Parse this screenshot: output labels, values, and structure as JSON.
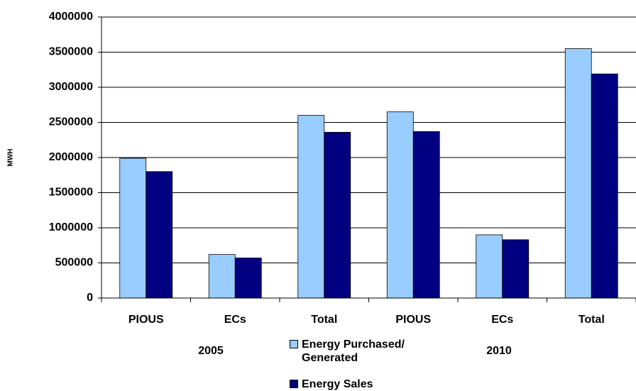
{
  "chart_data": {
    "type": "bar",
    "y_label": "MWH",
    "categories": [
      "PIOUS",
      "ECs",
      "Total",
      "PIOUS",
      "ECs",
      "Total"
    ],
    "group_labels": [
      "2005",
      "2010"
    ],
    "series": [
      {
        "name": "Energy Purchased/ Generated",
        "color": "#99ccff",
        "values": [
          1990000,
          620000,
          2600000,
          2650000,
          900000,
          3550000
        ]
      },
      {
        "name": "Energy Sales",
        "color": "#000080",
        "values": [
          1800000,
          570000,
          2360000,
          2370000,
          830000,
          3190000
        ]
      }
    ],
    "ylim": [
      0,
      4000000
    ],
    "yticks": [
      0,
      500000,
      1000000,
      1500000,
      2000000,
      2500000,
      3000000,
      3500000,
      4000000
    ],
    "grid": true
  }
}
